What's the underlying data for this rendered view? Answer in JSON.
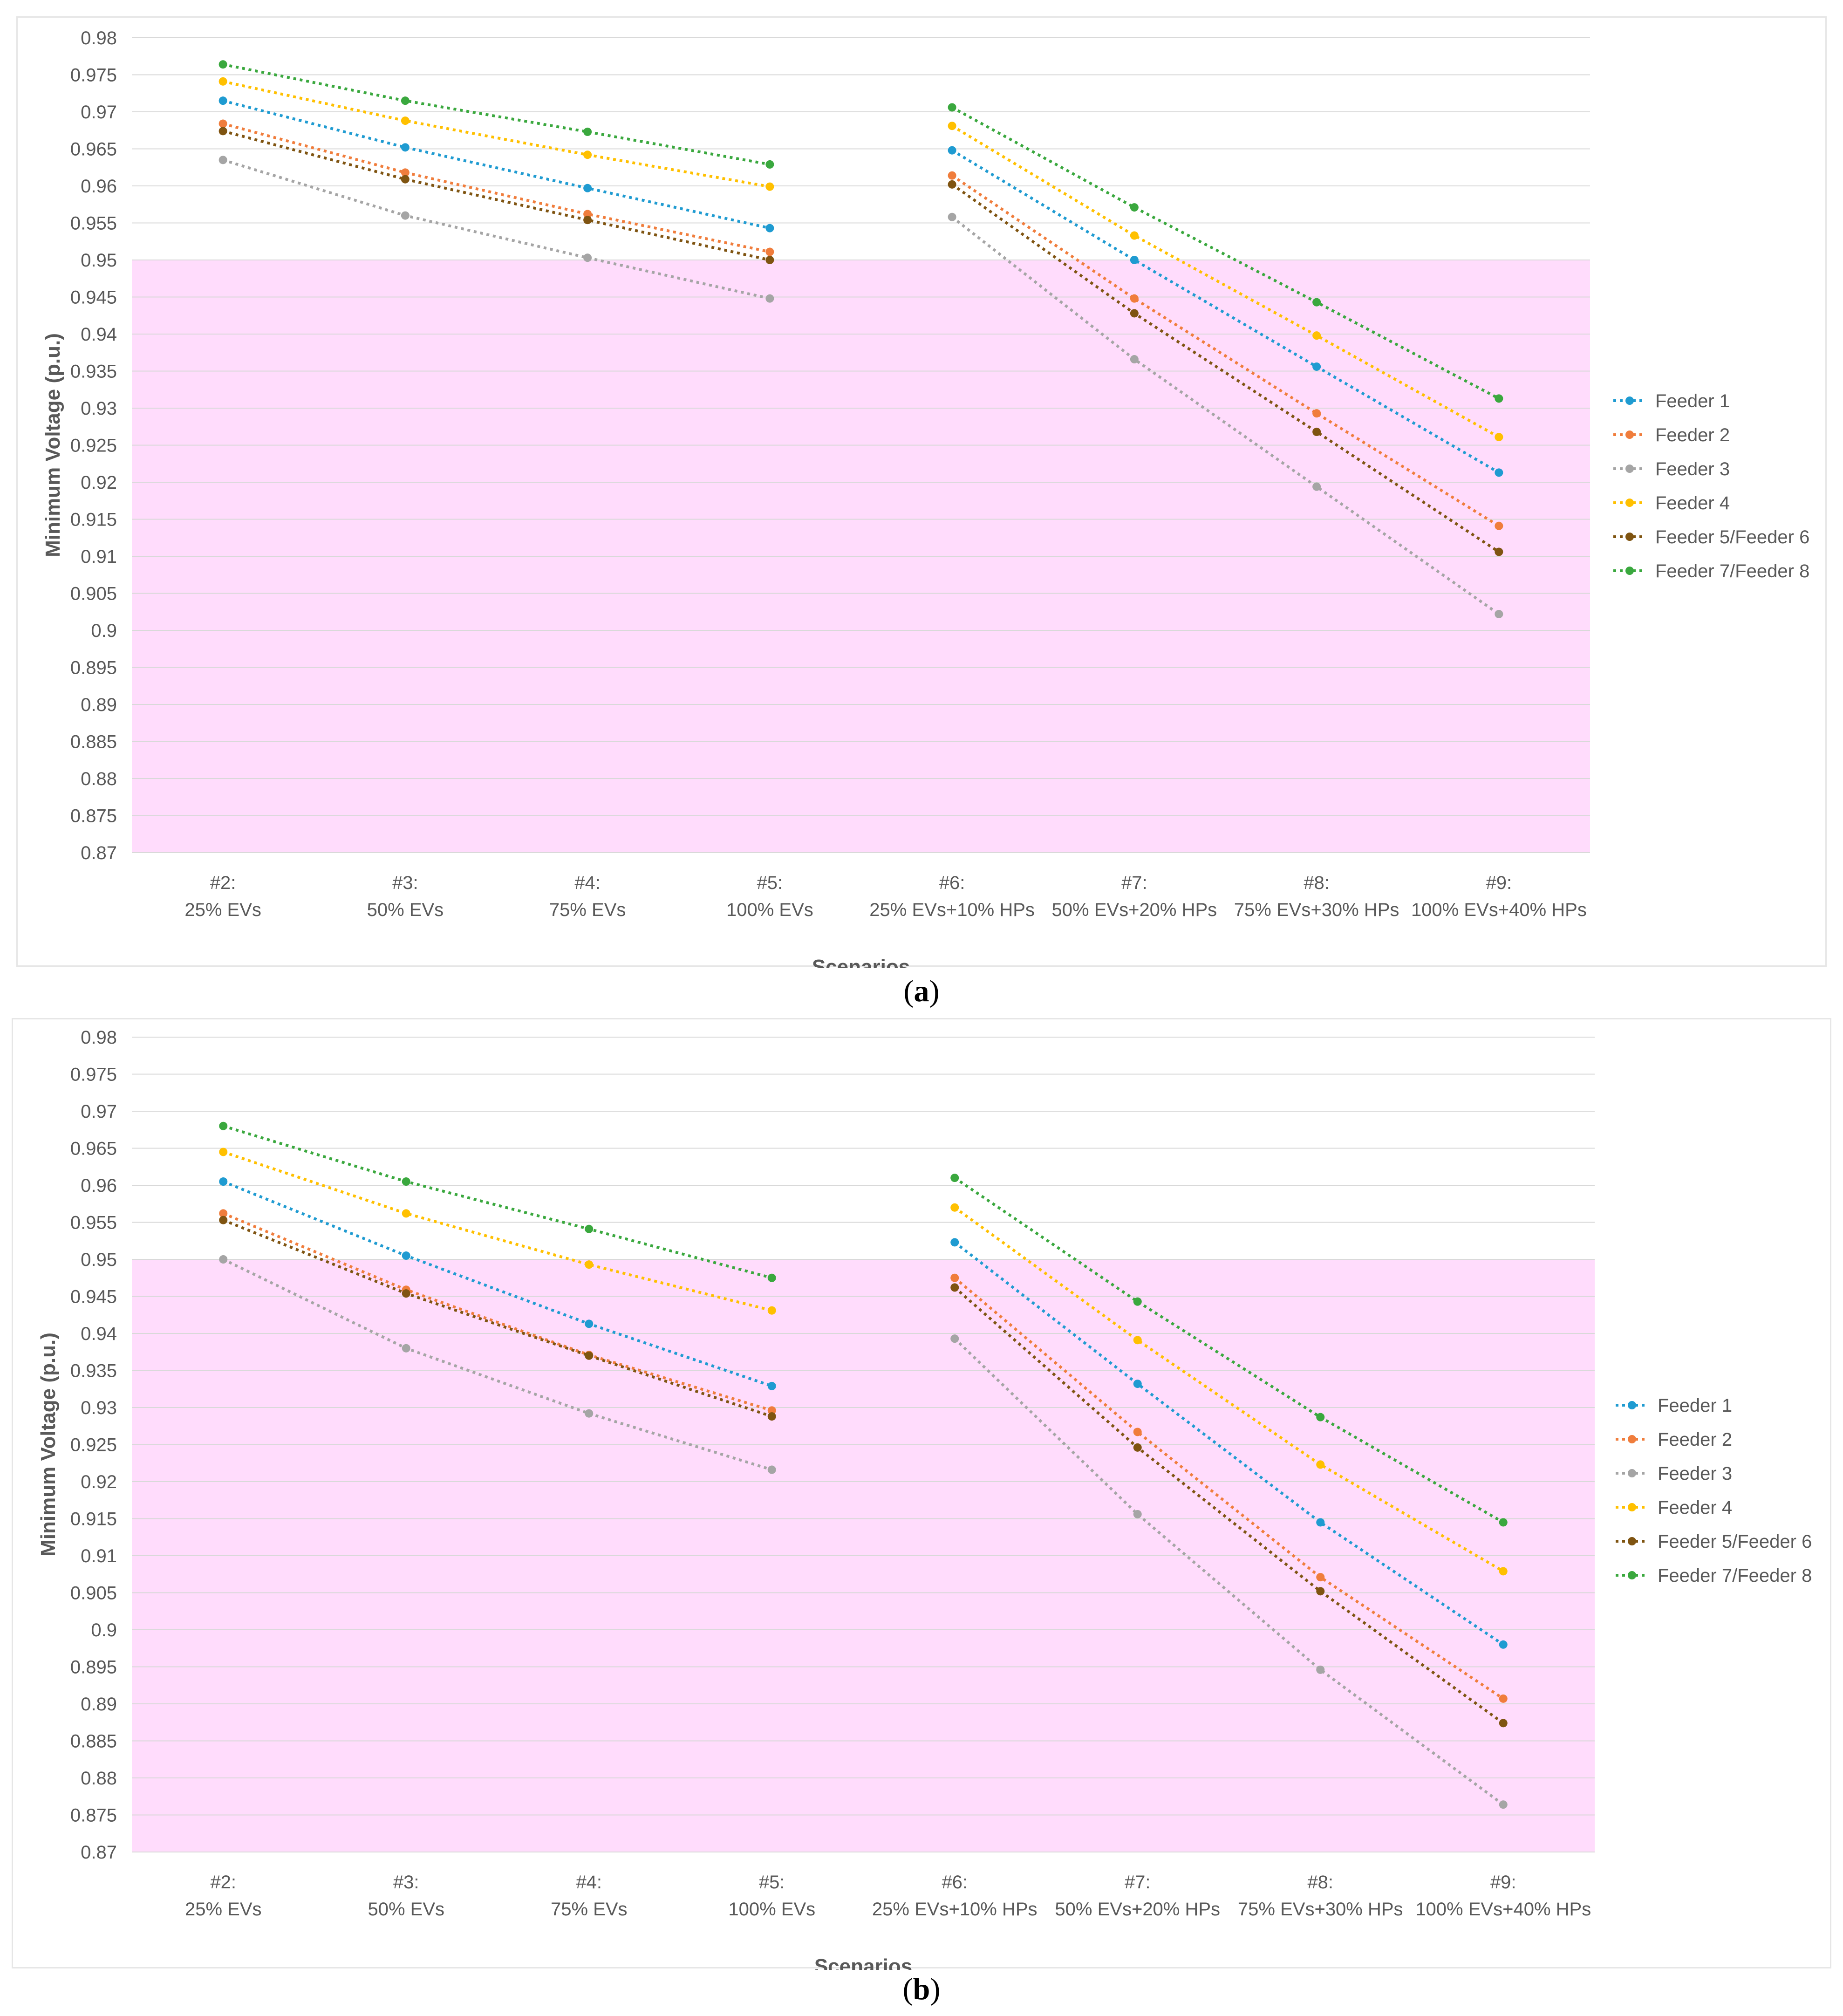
{
  "colors": {
    "band": "#ffdcfc",
    "grid": "#d9d9d9",
    "feeder1": "#1f9bd1",
    "feeder2": "#f07d3c",
    "feeder3": "#a5a5a5",
    "feeder4": "#ffc000",
    "feeder56": "#7f5411",
    "feeder78": "#3aa83e"
  },
  "captions": {
    "a_open": "(",
    "a_letter": "a",
    "a_close": ")",
    "b_open": "(",
    "b_letter": "b",
    "b_close": ")"
  },
  "chart_data": [
    {
      "type": "line",
      "panel": "a",
      "title": "",
      "xlabel": "Scenarios",
      "ylabel": "Minimum Voltage (p.u.)",
      "ylim": [
        0.87,
        0.98
      ],
      "ytick_step": 0.005,
      "ytick_labels": [
        "0.87",
        "0.875",
        "0.88",
        "0.885",
        "0.89",
        "0.895",
        "0.9",
        "0.905",
        "0.91",
        "0.915",
        "0.92",
        "0.925",
        "0.93",
        "0.935",
        "0.94",
        "0.945",
        "0.95",
        "0.955",
        "0.96",
        "0.965",
        "0.97",
        "0.975",
        "0.98"
      ],
      "band": [
        0.87,
        0.95
      ],
      "categories": [
        [
          "#2:",
          "25% EVs"
        ],
        [
          "#3:",
          "50% EVs"
        ],
        [
          "#4:",
          "75% EVs"
        ],
        [
          "#5:",
          "100% EVs"
        ],
        [
          "#6:",
          "25% EVs+10% HPs"
        ],
        [
          "#7:",
          "50% EVs+20% HPs"
        ],
        [
          "#8:",
          "75% EVs+30% HPs"
        ],
        [
          "#9:",
          "100% EVs+40% HPs"
        ]
      ],
      "segments": [
        [
          0,
          3
        ],
        [
          4,
          7
        ]
      ],
      "legend_position": "right",
      "series": [
        {
          "name": "Feeder 1",
          "color_key": "feeder1",
          "values": [
            0.9715,
            0.9652,
            0.9597,
            0.9543,
            0.9648,
            0.95,
            0.9356,
            0.9213
          ]
        },
        {
          "name": "Feeder 2",
          "color_key": "feeder2",
          "values": [
            0.9684,
            0.9618,
            0.9562,
            0.9511,
            0.9614,
            0.9448,
            0.9293,
            0.9141
          ]
        },
        {
          "name": "Feeder 3",
          "color_key": "feeder3",
          "values": [
            0.9635,
            0.956,
            0.9503,
            0.9448,
            0.9558,
            0.9366,
            0.9194,
            0.9022
          ]
        },
        {
          "name": "Feeder 4",
          "color_key": "feeder4",
          "values": [
            0.9741,
            0.9688,
            0.9642,
            0.9599,
            0.9681,
            0.9533,
            0.9398,
            0.9261
          ]
        },
        {
          "name": "Feeder 5/Feeder 6",
          "color_key": "feeder56",
          "values": [
            0.9674,
            0.9609,
            0.9554,
            0.95,
            0.9602,
            0.9428,
            0.9268,
            0.9106
          ]
        },
        {
          "name": "Feeder 7/Feeder 8",
          "color_key": "feeder78",
          "values": [
            0.9764,
            0.9715,
            0.9673,
            0.9629,
            0.9706,
            0.9571,
            0.9443,
            0.9313
          ]
        }
      ]
    },
    {
      "type": "line",
      "panel": "b",
      "title": "",
      "xlabel": "Scenarios",
      "ylabel": "Minimum Voltage (p.u.)",
      "ylim": [
        0.87,
        0.98
      ],
      "ytick_step": 0.005,
      "ytick_labels": [
        "0.87",
        "0.875",
        "0.88",
        "0.885",
        "0.89",
        "0.895",
        "0.9",
        "0.905",
        "0.91",
        "0.915",
        "0.92",
        "0.925",
        "0.93",
        "0.935",
        "0.94",
        "0.945",
        "0.95",
        "0.955",
        "0.96",
        "0.965",
        "0.97",
        "0.975",
        "0.98"
      ],
      "band": [
        0.87,
        0.95
      ],
      "categories": [
        [
          "#2:",
          "25% EVs"
        ],
        [
          "#3:",
          "50% EVs"
        ],
        [
          "#4:",
          "75% EVs"
        ],
        [
          "#5:",
          "100% EVs"
        ],
        [
          "#6:",
          "25% EVs+10% HPs"
        ],
        [
          "#7:",
          "50% EVs+20% HPs"
        ],
        [
          "#8:",
          "75% EVs+30% HPs"
        ],
        [
          "#9:",
          "100% EVs+40% HPs"
        ]
      ],
      "segments": [
        [
          0,
          3
        ],
        [
          4,
          7
        ]
      ],
      "legend_position": "right",
      "series": [
        {
          "name": "Feeder 1",
          "color_key": "feeder1",
          "values": [
            0.9605,
            0.9505,
            0.9413,
            0.9329,
            0.9523,
            0.9332,
            0.9145,
            0.898
          ]
        },
        {
          "name": "Feeder 2",
          "color_key": "feeder2",
          "values": [
            0.9562,
            0.9459,
            0.9371,
            0.9296,
            0.9475,
            0.9267,
            0.9071,
            0.8907
          ]
        },
        {
          "name": "Feeder 3",
          "color_key": "feeder3",
          "values": [
            0.95,
            0.938,
            0.9292,
            0.9216,
            0.9393,
            0.9156,
            0.8946,
            0.8764
          ]
        },
        {
          "name": "Feeder 4",
          "color_key": "feeder4",
          "values": [
            0.9645,
            0.9562,
            0.9493,
            0.9431,
            0.957,
            0.9391,
            0.9223,
            0.9079
          ]
        },
        {
          "name": "Feeder 5/Feeder 6",
          "color_key": "feeder56",
          "values": [
            0.9553,
            0.9454,
            0.937,
            0.9288,
            0.9462,
            0.9246,
            0.9052,
            0.8874
          ]
        },
        {
          "name": "Feeder 7/Feeder 8",
          "color_key": "feeder78",
          "values": [
            0.968,
            0.9605,
            0.9541,
            0.9475,
            0.961,
            0.9443,
            0.9287,
            0.9145
          ]
        }
      ]
    }
  ]
}
